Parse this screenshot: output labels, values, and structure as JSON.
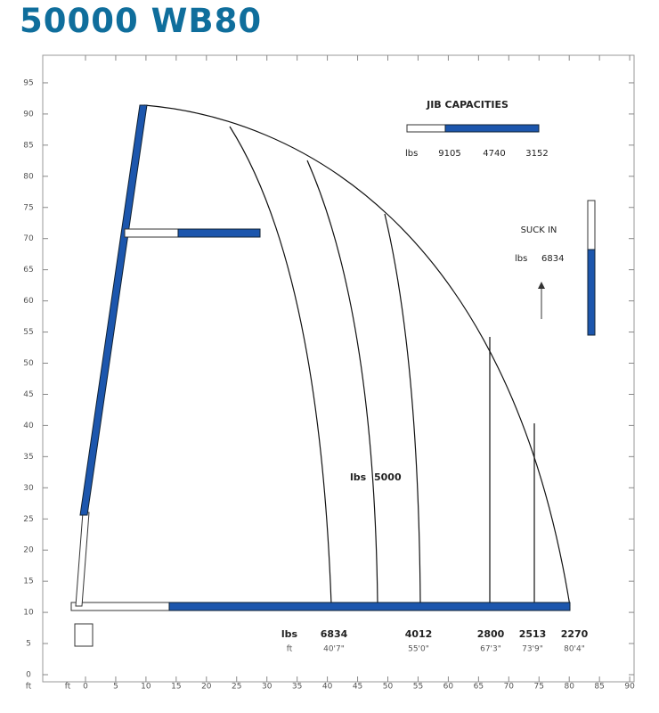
{
  "title": "50000 WB80",
  "axes": {
    "y_unit": "ft",
    "y_ticks": [
      0,
      5,
      10,
      15,
      20,
      25,
      30,
      35,
      40,
      45,
      50,
      55,
      60,
      65,
      70,
      75,
      80,
      85,
      90,
      95
    ],
    "x_unit": "ft",
    "x_ticks": [
      0,
      5,
      10,
      15,
      20,
      25,
      30,
      35,
      40,
      45,
      50,
      55,
      60,
      65,
      70,
      75,
      80,
      85,
      90
    ]
  },
  "jib_capacities": {
    "title": "JIB CAPACITIES",
    "unit": "lbs",
    "values": [
      "9105",
      "4740",
      "3152"
    ]
  },
  "suck_in": {
    "title": "SUCK IN",
    "unit": "lbs",
    "value": "6834"
  },
  "center_label": {
    "unit": "lbs",
    "value": "5000"
  },
  "capacities": {
    "weight_unit": "lbs",
    "radius_unit": "ft",
    "columns": [
      {
        "weight": "6834",
        "radius": "40'7\""
      },
      {
        "weight": "4012",
        "radius": "55'0\""
      },
      {
        "weight": "2800",
        "radius": "67'3\""
      },
      {
        "weight": "2513",
        "radius": "73'9\""
      },
      {
        "weight": "2270",
        "radius": "80'4\""
      }
    ]
  }
}
